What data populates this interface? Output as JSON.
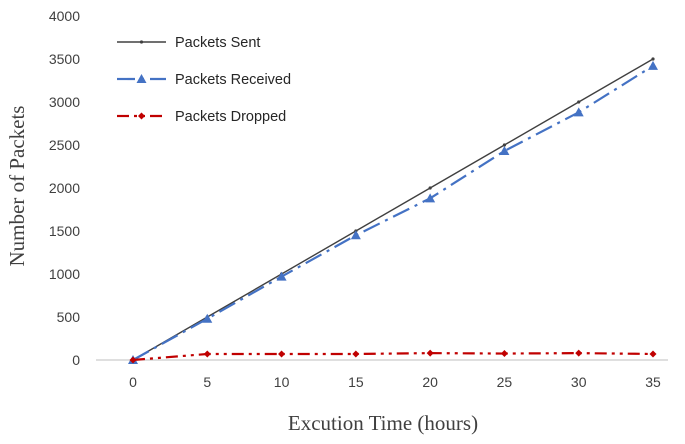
{
  "chart_data": {
    "type": "line",
    "title": "",
    "xlabel": "Excution Time (hours)",
    "ylabel": "Number of Packets",
    "x": [
      0,
      5,
      10,
      15,
      20,
      25,
      30,
      35
    ],
    "x_ticks": [
      "0",
      "5",
      "10",
      "15",
      "20",
      "25",
      "30",
      "35"
    ],
    "y_ticks": [
      "0",
      "500",
      "1000",
      "1500",
      "2000",
      "2500",
      "3000",
      "3500",
      "4000"
    ],
    "xlim": [
      0,
      35
    ],
    "ylim": [
      0,
      4000
    ],
    "grid": "none",
    "legend_position": "top-left",
    "series": [
      {
        "name": "Packets Sent",
        "values": [
          0,
          500,
          1000,
          1500,
          2000,
          2500,
          3000,
          3500
        ],
        "color": "#404040",
        "line_style": "solid",
        "marker": "dot"
      },
      {
        "name": "Packets Received",
        "values": [
          0,
          480,
          970,
          1450,
          1880,
          2430,
          2880,
          3420
        ],
        "color": "#4472C4",
        "line_style": "long-dash-dot",
        "marker": "triangle"
      },
      {
        "name": "Packets Dropped",
        "values": [
          0,
          70,
          70,
          70,
          80,
          75,
          80,
          70
        ],
        "color": "#C00000",
        "line_style": "dash-dot-dot",
        "marker": "diamond"
      }
    ]
  }
}
